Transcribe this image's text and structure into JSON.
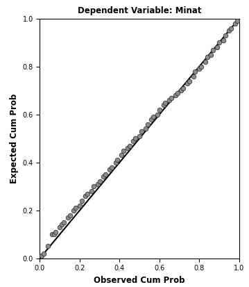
{
  "chart_data": {
    "type": "scatter",
    "title": "Dependent Variable: Minat",
    "x_label": "Observed Cum Prob",
    "y_label": "Expected Cum Prob",
    "x": [
      0.01,
      0.02,
      0.04,
      0.06,
      0.07,
      0.08,
      0.1,
      0.11,
      0.12,
      0.14,
      0.15,
      0.17,
      0.18,
      0.2,
      0.21,
      0.23,
      0.24,
      0.26,
      0.27,
      0.29,
      0.3,
      0.32,
      0.33,
      0.35,
      0.36,
      0.38,
      0.39,
      0.41,
      0.42,
      0.44,
      0.45,
      0.47,
      0.48,
      0.5,
      0.51,
      0.53,
      0.54,
      0.56,
      0.57,
      0.59,
      0.6,
      0.62,
      0.63,
      0.65,
      0.66,
      0.68,
      0.69,
      0.71,
      0.72,
      0.74,
      0.75,
      0.77,
      0.78,
      0.8,
      0.81,
      0.83,
      0.84,
      0.86,
      0.87,
      0.89,
      0.9,
      0.92,
      0.93,
      0.95,
      0.96,
      0.98,
      0.99
    ],
    "values": [
      0.01,
      0.02,
      0.05,
      0.1,
      0.1,
      0.11,
      0.13,
      0.14,
      0.15,
      0.17,
      0.18,
      0.2,
      0.21,
      0.22,
      0.24,
      0.26,
      0.27,
      0.28,
      0.3,
      0.31,
      0.32,
      0.34,
      0.35,
      0.37,
      0.38,
      0.4,
      0.41,
      0.43,
      0.45,
      0.46,
      0.47,
      0.49,
      0.5,
      0.51,
      0.53,
      0.54,
      0.56,
      0.58,
      0.59,
      0.6,
      0.62,
      0.64,
      0.65,
      0.66,
      0.67,
      0.68,
      0.69,
      0.7,
      0.71,
      0.73,
      0.74,
      0.76,
      0.78,
      0.79,
      0.8,
      0.82,
      0.84,
      0.85,
      0.87,
      0.88,
      0.9,
      0.91,
      0.93,
      0.95,
      0.96,
      0.98,
      0.99
    ],
    "reference_line": {
      "x": [
        0,
        1
      ],
      "y": [
        0,
        1
      ]
    },
    "color": "#8c8c8c",
    "marker": "o",
    "xlim": [
      0,
      1
    ],
    "ylim": [
      0,
      1
    ],
    "xticks": [
      {
        "value": 0,
        "label": "0.0"
      },
      {
        "value": 0.2,
        "label": "0.2"
      },
      {
        "value": 0.4,
        "label": "0.4"
      },
      {
        "value": 0.6,
        "label": "0.6"
      },
      {
        "value": 0.8,
        "label": "0.8"
      },
      {
        "value": 1,
        "label": "1.0"
      }
    ],
    "yticks": [
      {
        "value": 0,
        "label": "0.0"
      },
      {
        "value": 0.2,
        "label": "0.2"
      },
      {
        "value": 0.4,
        "label": "0.4"
      },
      {
        "value": 0.6,
        "label": "0.6"
      },
      {
        "value": 0.8,
        "label": "0.8"
      },
      {
        "value": 1,
        "label": "1.0"
      }
    ],
    "grid": false
  }
}
